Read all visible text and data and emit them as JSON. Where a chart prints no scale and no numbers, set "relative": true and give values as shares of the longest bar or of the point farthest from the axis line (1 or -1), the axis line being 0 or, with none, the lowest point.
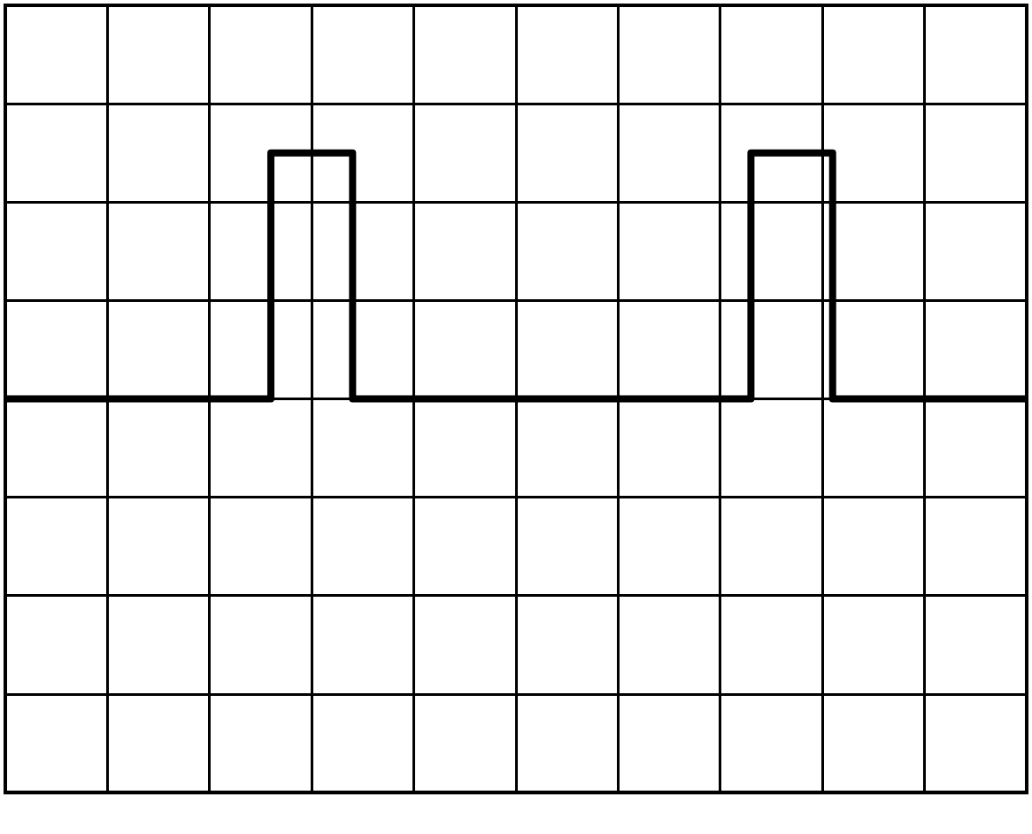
{
  "chart_data": {
    "type": "step",
    "relative": true,
    "grid": true,
    "marker": "none",
    "line_style": "solid",
    "color": "#000000",
    "categories": [
      null,
      null,
      null,
      null,
      null,
      null,
      null,
      null,
      null,
      null,
      null,
      null,
      null,
      null,
      null,
      null,
      null,
      null,
      null,
      null,
      null,
      null,
      null,
      null,
      null,
      null,
      null,
      null,
      null,
      null,
      null,
      null,
      null,
      null,
      null,
      null,
      null,
      null,
      null,
      null,
      null,
      null,
      null,
      null,
      null,
      null,
      null,
      null,
      null,
      null,
      null,
      null,
      null,
      null,
      null,
      null,
      null,
      null,
      null,
      null,
      null,
      null,
      null,
      null,
      null,
      null,
      null,
      null,
      null,
      null,
      null,
      null,
      null,
      null,
      null,
      null,
      null,
      null,
      null,
      null,
      null,
      null,
      null,
      null,
      null,
      null,
      null,
      null,
      null,
      null,
      null,
      null,
      null,
      null,
      null,
      null,
      null,
      null,
      null,
      null,
      null
    ],
    "values": [
      0,
      0,
      0,
      0,
      0,
      0,
      0,
      0,
      0,
      0,
      0,
      0,
      0,
      0,
      0,
      0,
      0,
      0,
      0,
      0,
      0,
      0,
      0,
      0,
      0,
      0,
      1,
      1,
      1,
      1,
      1,
      1,
      1,
      1,
      0,
      0,
      0,
      0,
      0,
      0,
      0,
      0,
      0,
      0,
      0,
      0,
      0,
      0,
      0,
      0,
      0,
      0,
      0,
      0,
      0,
      0,
      0,
      0,
      0,
      0,
      0,
      0,
      0,
      0,
      0,
      0,
      0,
      0,
      0,
      0,
      0,
      0,
      0,
      1,
      1,
      1,
      1,
      1,
      1,
      1,
      1,
      0,
      0,
      0,
      0,
      0,
      0,
      0,
      0,
      0,
      0,
      0,
      0,
      0,
      0,
      0,
      0,
      0,
      0,
      0,
      0
    ]
  }
}
